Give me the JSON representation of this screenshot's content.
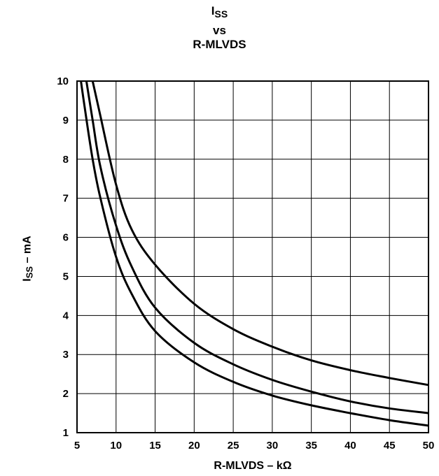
{
  "chart_data": {
    "type": "line",
    "title": {
      "main": "I",
      "main_sub": "SS",
      "line2": "vs",
      "line3": "R-MLVDS"
    },
    "xlabel": "R-MLVDS – kΩ",
    "ylabel": {
      "main": "I",
      "sub": "SS",
      "rest": " – mA"
    },
    "xlim": [
      5,
      50
    ],
    "ylim": [
      1,
      10
    ],
    "xticks": [
      5,
      10,
      15,
      20,
      25,
      30,
      35,
      40,
      45,
      50
    ],
    "yticks": [
      1,
      2,
      3,
      4,
      5,
      6,
      7,
      8,
      9,
      10
    ],
    "grid": true,
    "series": [
      {
        "x": [
          7,
          8,
          10,
          12,
          15,
          20,
          25,
          30,
          35,
          40,
          45,
          50
        ],
        "y": [
          10,
          9.1,
          7.35,
          6.2,
          5.3,
          4.3,
          3.65,
          3.2,
          2.85,
          2.6,
          2.4,
          2.22
        ]
      },
      {
        "x": [
          6.2,
          7,
          8,
          10,
          12,
          15,
          20,
          25,
          30,
          35,
          40,
          45,
          50
        ],
        "y": [
          10,
          9.0,
          7.8,
          6.3,
          5.25,
          4.2,
          3.3,
          2.75,
          2.35,
          2.05,
          1.8,
          1.62,
          1.5
        ]
      },
      {
        "x": [
          5.5,
          6,
          7,
          8,
          10,
          12,
          15,
          20,
          25,
          30,
          35,
          40,
          45,
          50
        ],
        "y": [
          10,
          9.3,
          8.0,
          7.0,
          5.5,
          4.55,
          3.6,
          2.8,
          2.3,
          1.95,
          1.7,
          1.5,
          1.32,
          1.18
        ]
      }
    ]
  }
}
